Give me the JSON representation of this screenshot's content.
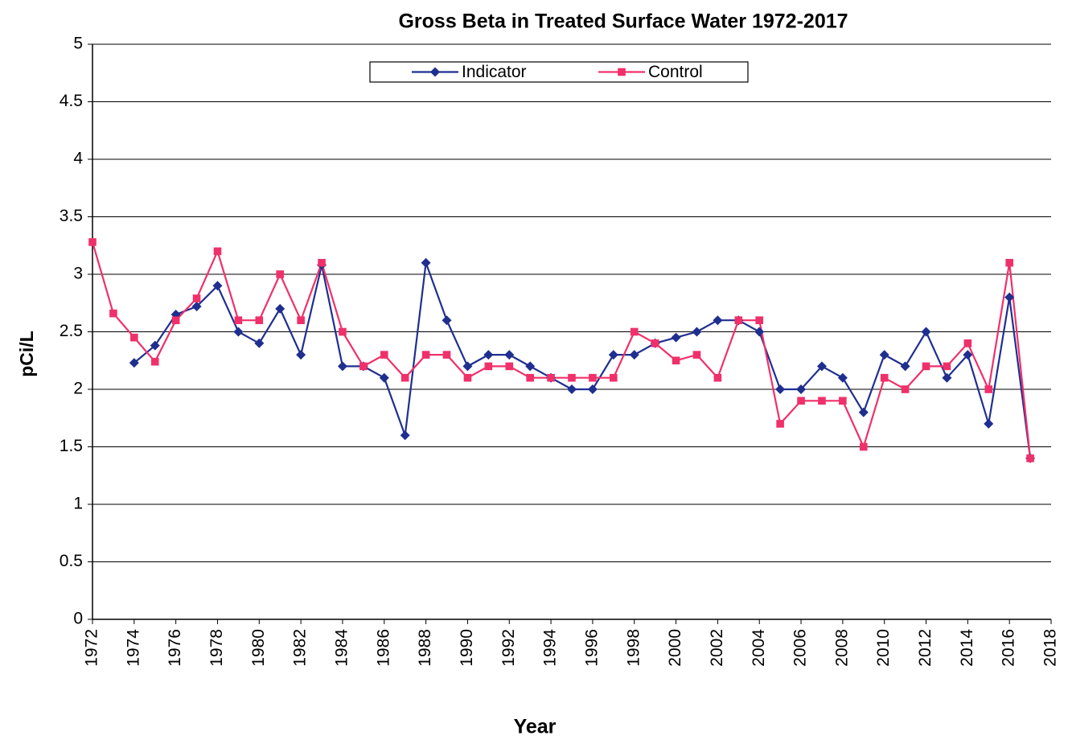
{
  "chart_data": {
    "type": "line",
    "title": "Gross Beta in Treated Surface Water  1972-2017",
    "x_label": "Year",
    "y_label": "pCi/L",
    "x": [
      1972,
      1973,
      1974,
      1975,
      1976,
      1977,
      1978,
      1979,
      1980,
      1981,
      1982,
      1983,
      1984,
      1985,
      1986,
      1987,
      1988,
      1989,
      1990,
      1991,
      1992,
      1993,
      1994,
      1995,
      1996,
      1997,
      1998,
      1999,
      2000,
      2001,
      2002,
      2003,
      2004,
      2005,
      2006,
      2007,
      2008,
      2009,
      2010,
      2011,
      2012,
      2013,
      2014,
      2015,
      2016,
      2017
    ],
    "series": [
      {
        "name": "Indicator",
        "color": "#1f2f8f",
        "marker": "diamond",
        "values": [
          null,
          null,
          2.23,
          2.38,
          2.65,
          2.72,
          2.9,
          2.5,
          2.4,
          2.7,
          2.3,
          3.08,
          2.2,
          2.2,
          2.1,
          1.6,
          3.1,
          2.6,
          2.2,
          2.3,
          2.3,
          2.2,
          2.1,
          2.0,
          2.0,
          2.3,
          2.3,
          2.4,
          2.45,
          2.5,
          2.6,
          2.6,
          2.5,
          2.0,
          2.0,
          2.2,
          2.1,
          1.8,
          2.3,
          2.2,
          2.5,
          2.1,
          2.3,
          1.7,
          2.8,
          1.4
        ]
      },
      {
        "name": "Control",
        "color": "#f0306a",
        "marker": "square",
        "values": [
          3.28,
          2.66,
          2.45,
          2.24,
          2.6,
          2.79,
          3.2,
          2.6,
          2.6,
          3.0,
          2.6,
          3.1,
          2.5,
          2.2,
          2.3,
          2.1,
          2.3,
          2.3,
          2.1,
          2.2,
          2.2,
          2.1,
          2.1,
          2.1,
          2.1,
          2.1,
          2.5,
          2.4,
          2.25,
          2.3,
          2.1,
          2.6,
          2.6,
          1.7,
          1.9,
          1.9,
          1.9,
          1.5,
          2.1,
          2.0,
          2.2,
          2.2,
          2.4,
          2.0,
          3.1,
          1.4
        ]
      }
    ],
    "xlim": [
      1972,
      2018
    ],
    "xticks": [
      1972,
      1974,
      1976,
      1978,
      1980,
      1982,
      1984,
      1986,
      1988,
      1990,
      1992,
      1994,
      1996,
      1998,
      2000,
      2002,
      2004,
      2006,
      2008,
      2010,
      2012,
      2014,
      2016,
      2018
    ],
    "ylim": [
      0,
      5
    ],
    "yticks": [
      0,
      0.5,
      1,
      1.5,
      2,
      2.5,
      3,
      3.5,
      4,
      4.5,
      5
    ],
    "grid": true,
    "legend": "top"
  }
}
